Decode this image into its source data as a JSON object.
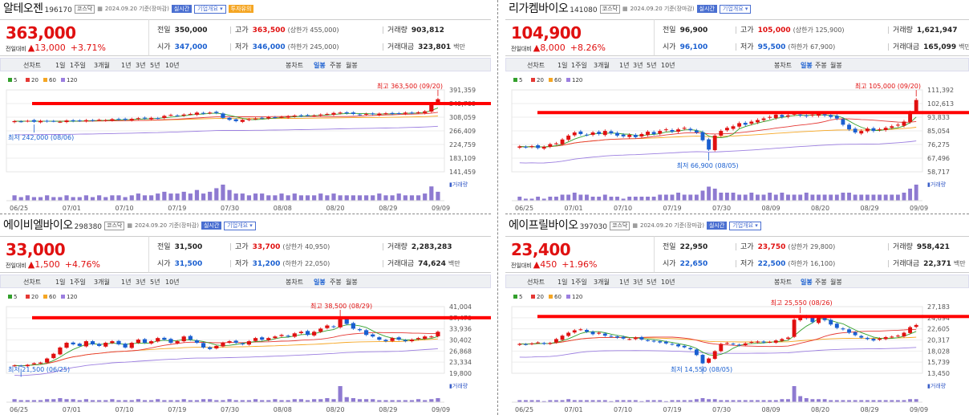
{
  "colors": {
    "up": "#e01010",
    "down": "#1a5fd0",
    "ma5": "#33a02c",
    "ma20": "#e53935",
    "ma60": "#f5a623",
    "ma120": "#9c7fe0",
    "volume": "#8e7ad1",
    "highline": "#ff0000"
  },
  "icons": {
    "calendar": "calendar-icon",
    "arrow_up": "triangle-up-icon"
  },
  "panels": [
    {
      "name": "알테오젠",
      "code": "196170",
      "market": "코스닥",
      "datetime": "2024.09.20 기준(장마감)",
      "btn_realtime": "실시간",
      "btn_company": "기업개요 ▾",
      "btn_extra": "투자유의",
      "price": "363,000",
      "change_label": "전일대비",
      "change": "13,000",
      "change_pct": "+3.71%",
      "stats": {
        "prev_label": "전일",
        "prev": "350,000",
        "high_label": "고가",
        "high": "363,500",
        "upper_limit": "(상한가 455,000)",
        "volume_label": "거래량",
        "volume": "903,812",
        "open_label": "시가",
        "open": "347,000",
        "low_label": "저가",
        "low": "346,000",
        "lower_limit": "(하한가 245,000)",
        "amount_label": "거래대금",
        "amount": "323,801",
        "amount_unit": "백만"
      },
      "chart_data": {
        "type": "candlestick",
        "title": "알테오젠",
        "x_ticks": [
          "06/25",
          "07/01",
          "07/10",
          "07/19",
          "07/30",
          "08/08",
          "08/20",
          "08/29",
          "09/09"
        ],
        "y_ticks": [
          "391,359",
          "349,709",
          "308,059",
          "266,409",
          "224,759",
          "183,109",
          "141,459"
        ],
        "ylim": [
          141459,
          391359
        ],
        "legend": [
          "5",
          "20",
          "60",
          "120"
        ],
        "high_annotation": "최고 363,500 (09/20)",
        "low_annotation": "최저 242,000 (08/06)",
        "high_line_value": 349709,
        "volume_label": "▮거래량",
        "closes": [
          296000,
          295000,
          297000,
          294000,
          297000,
          295000,
          296000,
          294000,
          298000,
          296000,
          297000,
          299000,
          298000,
          300000,
          299000,
          302000,
          301000,
          300000,
          303000,
          305000,
          304000,
          306000,
          305000,
          312000,
          315000,
          313000,
          316000,
          318000,
          322000,
          320000,
          322000,
          321000,
          306000,
          300000,
          296000,
          300000,
          302000,
          304000,
          306000,
          308000,
          307000,
          309000,
          311000,
          313000,
          312000,
          314000,
          313000,
          316000,
          318000,
          321000,
          322000,
          320000,
          318000,
          316000,
          318000,
          317000,
          319000,
          320000,
          318000,
          320000,
          322000,
          321000,
          323000,
          326000,
          350000,
          363000
        ],
        "volumes": [
          3,
          2,
          3,
          2,
          2,
          3,
          2,
          2,
          3,
          2,
          2,
          3,
          2,
          3,
          2,
          3,
          3,
          2,
          3,
          4,
          3,
          3,
          4,
          5,
          4,
          4,
          5,
          4,
          6,
          4,
          5,
          7,
          9,
          6,
          4,
          4,
          3,
          4,
          4,
          3,
          3,
          4,
          3,
          4,
          3,
          3,
          3,
          4,
          3,
          4,
          3,
          3,
          3,
          3,
          3,
          3,
          4,
          3,
          3,
          4,
          3,
          3,
          3,
          4,
          8,
          5
        ]
      },
      "tabs": {
        "line": "선차트",
        "d1": "1일",
        "w1": "1주일",
        "m3": "3개월",
        "y1": "1년",
        "y3": "3년",
        "y5": "5년",
        "y10": "10년",
        "candle": "봉차트",
        "daily": "일봉",
        "weekly": "주봉",
        "monthly": "월봉"
      }
    },
    {
      "name": "리가켐바이오",
      "code": "141080",
      "market": "코스닥",
      "datetime": "2024.09.20 기준(장마감)",
      "btn_realtime": "실시간",
      "btn_company": "기업개요 ▾",
      "btn_extra": "",
      "price": "104,900",
      "change_label": "전일대비",
      "change": "8,000",
      "change_pct": "+8.26%",
      "stats": {
        "prev_label": "전일",
        "prev": "96,900",
        "high_label": "고가",
        "high": "105,000",
        "upper_limit": "(상한가 125,900)",
        "volume_label": "거래량",
        "volume": "1,621,947",
        "open_label": "시가",
        "open": "96,100",
        "low_label": "저가",
        "low": "95,500",
        "lower_limit": "(하한가 67,900)",
        "amount_label": "거래대금",
        "amount": "165,099",
        "amount_unit": "백만"
      },
      "chart_data": {
        "type": "candlestick",
        "title": "리가켐바이오",
        "x_ticks": [
          "06/25",
          "07/01",
          "07/10",
          "07/19",
          "07/30",
          "08/09",
          "08/20",
          "08/29",
          "09/09"
        ],
        "y_ticks": [
          "111,392",
          "102,613",
          "93,833",
          "85,054",
          "76,275",
          "67,496",
          "58,717"
        ],
        "ylim": [
          58717,
          111392
        ],
        "legend": [
          "5",
          "20",
          "60",
          "120"
        ],
        "high_annotation": "최고 105,000 (09/20)",
        "low_annotation": "최저 66,900 (08/05)",
        "high_line_value": 96800,
        "volume_label": "▮거래량",
        "closes": [
          75000,
          74500,
          75200,
          74000,
          74800,
          76500,
          77000,
          79500,
          82000,
          84000,
          83000,
          82500,
          84000,
          83000,
          85000,
          83500,
          82000,
          81500,
          82500,
          81000,
          83000,
          84500,
          83000,
          85000,
          86000,
          84500,
          86000,
          87000,
          85500,
          84000,
          79000,
          73000,
          82000,
          85000,
          87000,
          88000,
          90000,
          89000,
          91000,
          92000,
          93000,
          94000,
          95500,
          94000,
          95000,
          96000,
          95000,
          94500,
          95500,
          96000,
          95000,
          94000,
          93000,
          89000,
          86000,
          84000,
          85000,
          86500,
          85000,
          86000,
          87000,
          88000,
          89000,
          91000,
          96900,
          104900
        ],
        "volumes": [
          2,
          1,
          1,
          2,
          1,
          2,
          2,
          3,
          3,
          4,
          3,
          3,
          2,
          2,
          3,
          2,
          2,
          1,
          2,
          2,
          2,
          2,
          2,
          3,
          3,
          3,
          4,
          3,
          3,
          3,
          5,
          7,
          6,
          4,
          4,
          4,
          3,
          3,
          4,
          3,
          3,
          4,
          3,
          4,
          3,
          3,
          3,
          4,
          3,
          3,
          3,
          3,
          3,
          4,
          4,
          3,
          3,
          3,
          3,
          3,
          3,
          3,
          3,
          4,
          6,
          8
        ]
      },
      "tabs": {
        "line": "선차트",
        "d1": "1일",
        "w1": "1주일",
        "m3": "3개월",
        "y1": "1년",
        "y3": "3년",
        "y5": "5년",
        "y10": "10년",
        "candle": "봉차트",
        "daily": "일봉",
        "weekly": "주봉",
        "monthly": "월봉"
      }
    },
    {
      "name": "에이비엘바이오",
      "code": "298380",
      "market": "코스닥",
      "datetime": "2024.09.20 기준(장마감)",
      "btn_realtime": "실시간",
      "btn_company": "기업개요 ▾",
      "btn_extra": "",
      "price": "33,000",
      "change_label": "전일대비",
      "change": "1,500",
      "change_pct": "+4.76%",
      "stats": {
        "prev_label": "전일",
        "prev": "31,500",
        "high_label": "고가",
        "high": "33,700",
        "upper_limit": "(상한가 40,950)",
        "volume_label": "거래량",
        "volume": "2,283,283",
        "open_label": "시가",
        "open": "31,500",
        "low_label": "저가",
        "low": "31,200",
        "lower_limit": "(하한가 22,050)",
        "amount_label": "거래대금",
        "amount": "74,624",
        "amount_unit": "백만"
      },
      "chart_data": {
        "type": "candlestick",
        "title": "에이비엘바이오",
        "x_ticks": [
          "06/25",
          "07/01",
          "07/10",
          "07/19",
          "07/30",
          "08/08",
          "08/20",
          "08/29",
          "09/09"
        ],
        "y_ticks": [
          "41,004",
          "37,470",
          "33,936",
          "30,402",
          "26,868",
          "23,334",
          "19,800"
        ],
        "ylim": [
          19800,
          41004
        ],
        "legend": [
          "5",
          "20",
          "60",
          "120"
        ],
        "high_annotation": "최고 38,500 (08/29)",
        "low_annotation": "최저 21,500 (06/25)",
        "high_line_value": 37470,
        "volume_label": "▮거래량",
        "closes": [
          22300,
          22000,
          22500,
          23000,
          23200,
          24500,
          26000,
          28000,
          29500,
          29000,
          28500,
          30000,
          29000,
          28500,
          29500,
          30000,
          29000,
          28000,
          29500,
          30500,
          29500,
          30000,
          31000,
          30500,
          29500,
          30000,
          31500,
          30500,
          29500,
          28000,
          27500,
          28500,
          29500,
          30000,
          29500,
          29000,
          30000,
          31000,
          30500,
          31000,
          31500,
          32000,
          31500,
          32500,
          33000,
          32000,
          33000,
          34000,
          35000,
          34500,
          37000,
          35500,
          34000,
          33500,
          32000,
          31500,
          30500,
          30000,
          31000,
          30500,
          30000,
          30500,
          31000,
          31500,
          31500,
          33000
        ],
        "volumes": [
          3,
          2,
          2,
          2,
          2,
          3,
          3,
          4,
          3,
          3,
          2,
          3,
          2,
          2,
          2,
          3,
          2,
          2,
          2,
          3,
          2,
          2,
          3,
          2,
          2,
          2,
          3,
          2,
          2,
          3,
          3,
          2,
          2,
          3,
          2,
          2,
          2,
          3,
          2,
          2,
          3,
          2,
          2,
          3,
          3,
          2,
          3,
          3,
          4,
          3,
          16,
          5,
          4,
          3,
          3,
          3,
          2,
          2,
          2,
          2,
          2,
          2,
          3,
          2,
          3,
          4
        ]
      },
      "tabs": {
        "line": "선차트",
        "d1": "1일",
        "w1": "1주일",
        "m3": "3개월",
        "y1": "1년",
        "y3": "3년",
        "y5": "5년",
        "y10": "10년",
        "candle": "봉차트",
        "daily": "일봉",
        "weekly": "주봉",
        "monthly": "월봉"
      }
    },
    {
      "name": "에이프릴바이오",
      "code": "397030",
      "market": "코스닥",
      "datetime": "2024.09.20 기준(장마감)",
      "btn_realtime": "실시간",
      "btn_company": "기업개요 ▾",
      "btn_extra": "",
      "price": "23,400",
      "change_label": "전일대비",
      "change": "450",
      "change_pct": "+1.96%",
      "stats": {
        "prev_label": "전일",
        "prev": "22,950",
        "high_label": "고가",
        "high": "23,750",
        "upper_limit": "(상한가 29,800)",
        "volume_label": "거래량",
        "volume": "958,421",
        "open_label": "시가",
        "open": "22,650",
        "low_label": "저가",
        "low": "22,500",
        "lower_limit": "(하한가 16,100)",
        "amount_label": "거래대금",
        "amount": "22,371",
        "amount_unit": "백만"
      },
      "chart_data": {
        "type": "candlestick",
        "title": "에이프릴바이오",
        "x_ticks": [
          "06/25",
          "07/01",
          "07/10",
          "07/19",
          "07/30",
          "08/09",
          "08/20",
          "08/29",
          "09/09"
        ],
        "y_ticks": [
          "27,183",
          "24,894",
          "22,605",
          "20,317",
          "18,028",
          "15,739",
          "13,450"
        ],
        "ylim": [
          13450,
          27183
        ],
        "legend": [
          "5",
          "20",
          "60",
          "120"
        ],
        "high_annotation": "최고 25,550 (08/26)",
        "low_annotation": "최저 14,550 (08/05)",
        "high_line_value": 25150,
        "volume_label": "▮거래량",
        "closes": [
          19500,
          19400,
          19600,
          19800,
          19500,
          19700,
          20500,
          21200,
          21800,
          22300,
          22500,
          22000,
          21500,
          21800,
          21200,
          21000,
          20800,
          20600,
          20500,
          20800,
          20400,
          20200,
          20000,
          19800,
          19600,
          19400,
          19000,
          18800,
          18400,
          17200,
          15500,
          16500,
          18000,
          19500,
          19700,
          19400,
          19200,
          19600,
          19900,
          20000,
          19800,
          19900,
          20200,
          20500,
          20800,
          24500,
          25200,
          24800,
          24000,
          25000,
          24400,
          23500,
          22800,
          22500,
          21800,
          21300,
          20800,
          20500,
          20200,
          20600,
          20900,
          21000,
          21200,
          21800,
          22950,
          23400
        ],
        "volumes": [
          2,
          2,
          2,
          2,
          1,
          2,
          2,
          2,
          3,
          2,
          2,
          2,
          2,
          2,
          2,
          1,
          2,
          2,
          2,
          2,
          1,
          2,
          2,
          2,
          1,
          2,
          2,
          2,
          2,
          3,
          4,
          3,
          3,
          2,
          2,
          2,
          2,
          2,
          2,
          2,
          2,
          2,
          2,
          3,
          3,
          16,
          6,
          4,
          3,
          3,
          3,
          2,
          2,
          2,
          2,
          2,
          2,
          2,
          2,
          2,
          2,
          2,
          2,
          2,
          3,
          3
        ]
      },
      "tabs": {
        "line": "선차트",
        "d1": "1일",
        "w1": "1주일",
        "m3": "3개월",
        "y1": "1년",
        "y3": "3년",
        "y5": "5년",
        "y10": "10년",
        "candle": "봉차트",
        "daily": "일봉",
        "weekly": "주봉",
        "monthly": "월봉"
      }
    }
  ]
}
